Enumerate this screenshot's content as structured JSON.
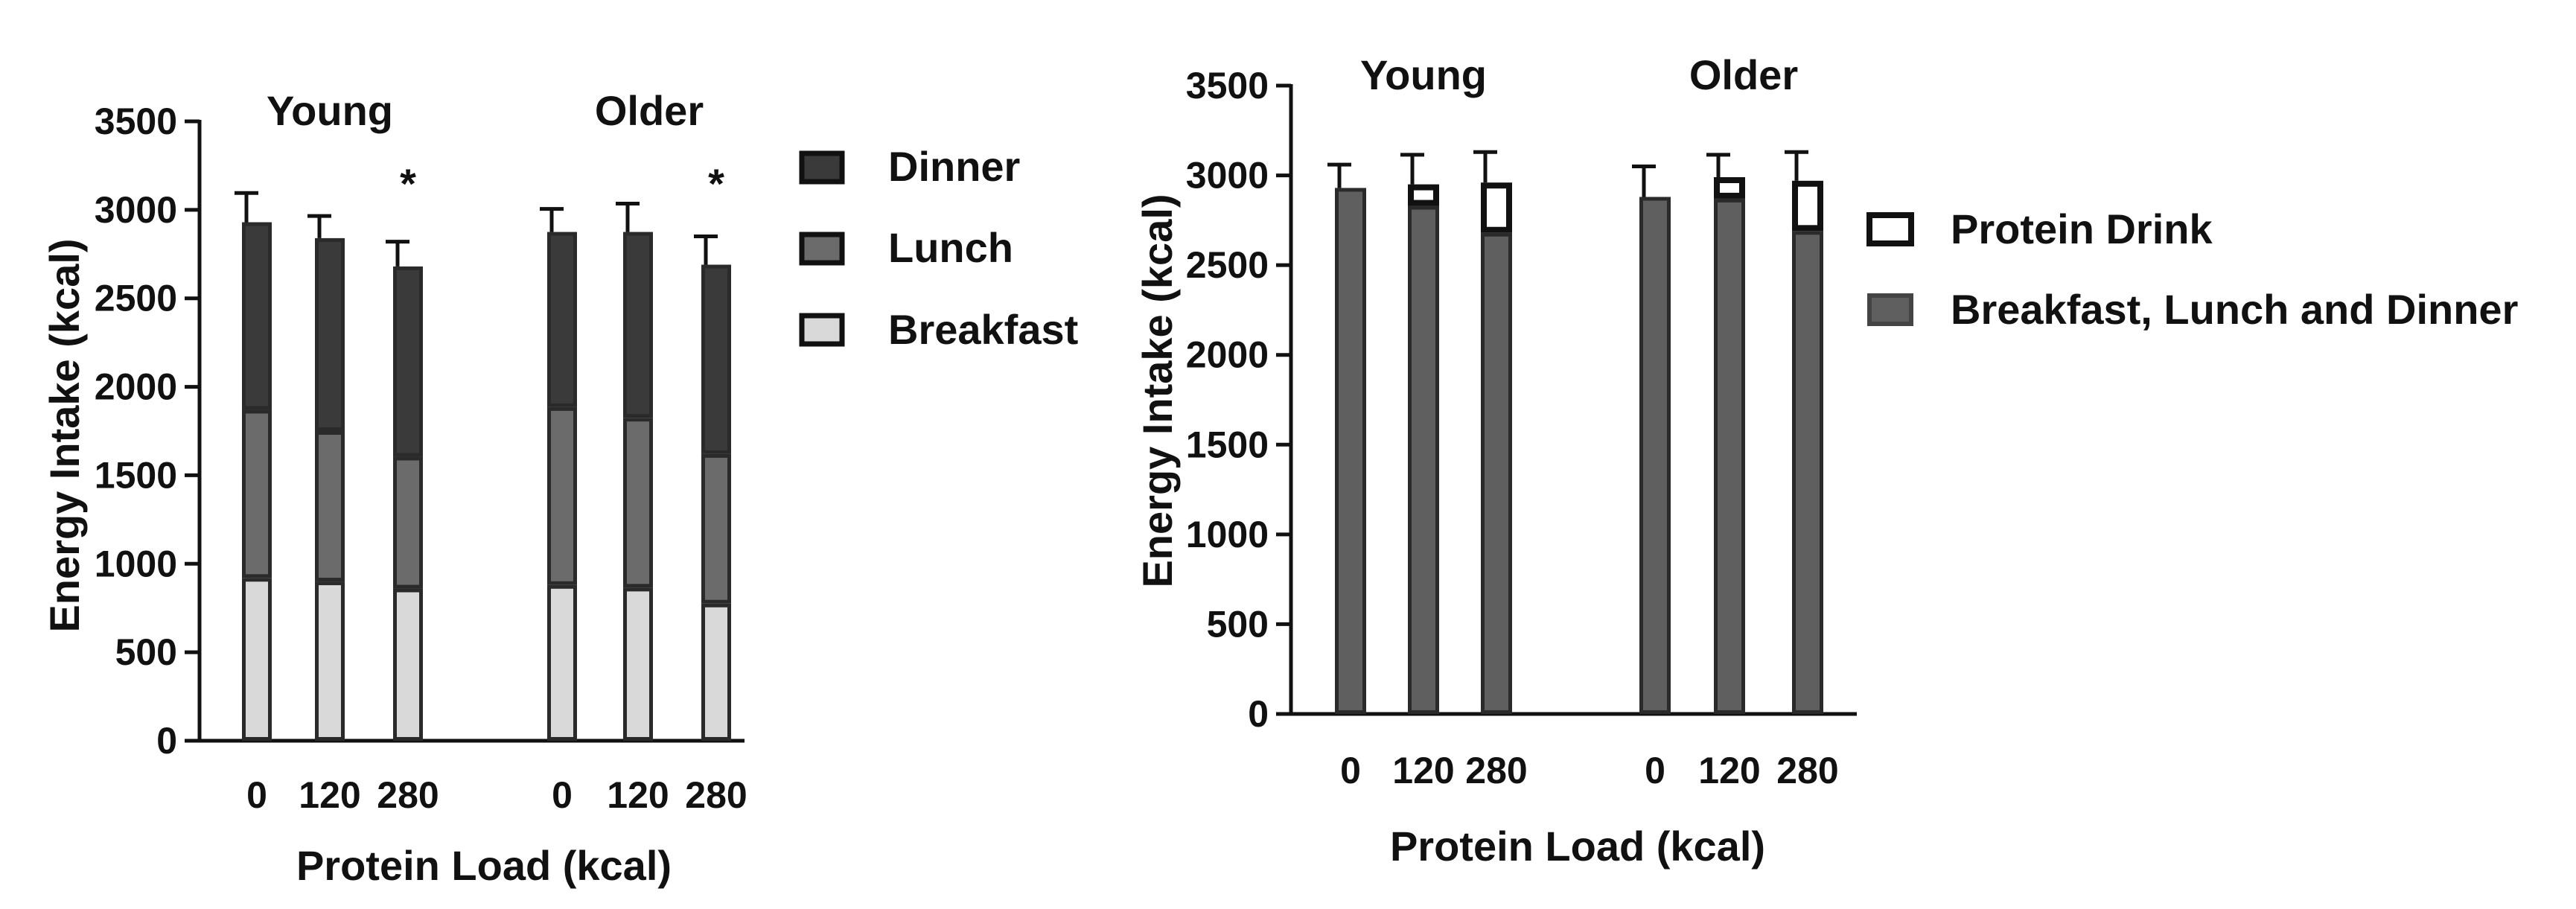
{
  "chart_data": [
    {
      "type": "bar",
      "stacked": true,
      "xlabel": "Protein Load (kcal)",
      "ylabel": "Energy Intake (kcal)",
      "ylim": [
        0,
        3500
      ],
      "yticks": [
        "0",
        "500",
        "1000",
        "1500",
        "2000",
        "2500",
        "3000",
        "3500"
      ],
      "groups": [
        "Young",
        "Older"
      ],
      "categories": [
        "0",
        "120",
        "280"
      ],
      "series": [
        {
          "name": "Breakfast",
          "color": "#d9d9d9",
          "values": [
            [
              920,
              900,
              860
            ],
            [
              880,
              865,
              775
            ]
          ]
        },
        {
          "name": "Lunch",
          "color": "#6b6b6b",
          "values": [
            [
              950,
              850,
              745
            ],
            [
              1005,
              960,
              845
            ]
          ]
        },
        {
          "name": "Dinner",
          "color": "#3a3a3a",
          "values": [
            [
              1060,
              1090,
              1075
            ],
            [
              990,
              1050,
              1070
            ]
          ]
        }
      ],
      "error": [
        [
          165,
          125,
          140
        ],
        [
          130,
          160,
          160
        ]
      ],
      "legend": [
        "Dinner",
        "Lunch",
        "Breakfast"
      ],
      "significance": [
        [
          "",
          "",
          "*"
        ],
        [
          "",
          "",
          "*"
        ]
      ]
    },
    {
      "type": "bar",
      "stacked": true,
      "xlabel": "Protein Load (kcal)",
      "ylabel": "Energy Intake (kcal)",
      "ylim": [
        0,
        3500
      ],
      "yticks": [
        "0",
        "500",
        "1000",
        "1500",
        "2000",
        "2500",
        "3000",
        "3500"
      ],
      "groups": [
        "Young",
        "Older"
      ],
      "categories": [
        "0",
        "120",
        "280"
      ],
      "series": [
        {
          "name": "Breakfast, Lunch and Dinner",
          "color": "#5f5f5f",
          "values": [
            [
              2930,
              2830,
              2680
            ],
            [
              2880,
              2870,
              2690
            ]
          ]
        },
        {
          "name": "Protein Drink",
          "color": "#ffffff",
          "values": [
            [
              0,
              120,
              280
            ],
            [
              0,
              120,
              280
            ]
          ]
        }
      ],
      "error": [
        [
          130,
          165,
          170
        ],
        [
          170,
          125,
          160
        ]
      ],
      "legend": [
        "Protein Drink",
        "Breakfast, Lunch and Dinner"
      ]
    }
  ]
}
